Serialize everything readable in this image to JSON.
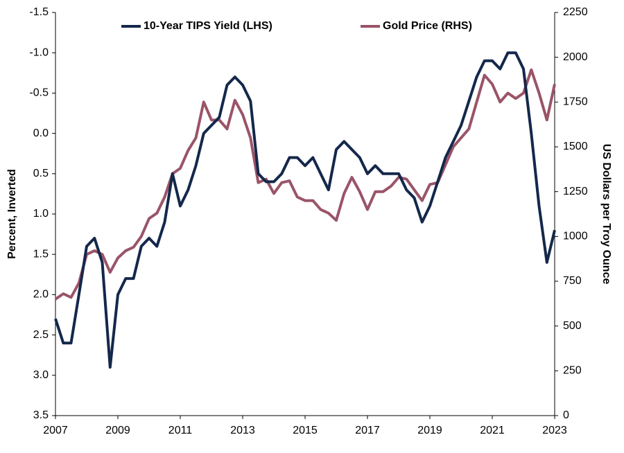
{
  "chart_data": {
    "type": "line",
    "x": [
      2007.0,
      2007.25,
      2007.5,
      2007.75,
      2008.0,
      2008.25,
      2008.5,
      2008.75,
      2009.0,
      2009.25,
      2009.5,
      2009.75,
      2010.0,
      2010.25,
      2010.5,
      2010.75,
      2011.0,
      2011.25,
      2011.5,
      2011.75,
      2012.0,
      2012.25,
      2012.5,
      2012.75,
      2013.0,
      2013.25,
      2013.5,
      2013.75,
      2014.0,
      2014.25,
      2014.5,
      2014.75,
      2015.0,
      2015.25,
      2015.5,
      2015.75,
      2016.0,
      2016.25,
      2016.5,
      2016.75,
      2017.0,
      2017.25,
      2017.5,
      2017.75,
      2018.0,
      2018.25,
      2018.5,
      2018.75,
      2019.0,
      2019.25,
      2019.5,
      2019.75,
      2020.0,
      2020.25,
      2020.5,
      2020.75,
      2021.0,
      2021.25,
      2021.5,
      2021.75,
      2022.0,
      2022.25,
      2022.5,
      2022.75,
      2023.0
    ],
    "series": [
      {
        "name": "10-Year TIPS Yield (LHS)",
        "color": "#14284b",
        "values": [
          2.3,
          2.6,
          2.6,
          2.0,
          1.4,
          1.3,
          1.6,
          2.9,
          2.0,
          1.8,
          1.8,
          1.4,
          1.3,
          1.4,
          1.1,
          0.5,
          0.9,
          0.7,
          0.4,
          0.0,
          -0.1,
          -0.2,
          -0.6,
          -0.7,
          -0.6,
          -0.4,
          0.5,
          0.6,
          0.6,
          0.5,
          0.3,
          0.3,
          0.4,
          0.3,
          0.5,
          0.7,
          0.2,
          0.1,
          0.2,
          0.3,
          0.5,
          0.4,
          0.5,
          0.5,
          0.5,
          0.7,
          0.8,
          1.1,
          0.9,
          0.6,
          0.3,
          0.1,
          -0.1,
          -0.4,
          -0.7,
          -0.9,
          -0.9,
          -0.8,
          -1.0,
          -1.0,
          -0.8,
          0.0,
          0.9,
          1.6,
          1.2
        ]
      },
      {
        "name": "Gold Price (RHS)",
        "color": "#9a5468",
        "axis": "y2",
        "values": [
          650,
          680,
          660,
          740,
          900,
          920,
          900,
          800,
          880,
          920,
          940,
          1000,
          1100,
          1130,
          1220,
          1350,
          1380,
          1480,
          1550,
          1750,
          1650,
          1650,
          1600,
          1760,
          1680,
          1550,
          1300,
          1320,
          1240,
          1300,
          1310,
          1220,
          1200,
          1200,
          1150,
          1130,
          1090,
          1240,
          1330,
          1250,
          1150,
          1250,
          1250,
          1280,
          1330,
          1320,
          1260,
          1200,
          1290,
          1300,
          1400,
          1500,
          1550,
          1600,
          1750,
          1900,
          1850,
          1750,
          1800,
          1770,
          1800,
          1930,
          1800,
          1650,
          1850
        ]
      }
    ],
    "y_label": "Percent, Inverted",
    "y2_label": "US Dollars per Troy Ounce",
    "xlim": [
      2007,
      2023
    ],
    "xticks": [
      2007,
      2009,
      2011,
      2013,
      2015,
      2017,
      2019,
      2021,
      2023
    ],
    "ylim": [
      -1.5,
      3.5
    ],
    "y_inverted": true,
    "yticks": [
      -1.5,
      {
        "value": -1,
        "label": "-1.0"
      },
      -0.5,
      {
        "value": 0,
        "label": "0.0"
      },
      0.5,
      {
        "value": 1,
        "label": "1.0"
      },
      1.5,
      {
        "value": 2,
        "label": "2.0"
      },
      2.5,
      {
        "value": 3,
        "label": "3.0"
      },
      3.5
    ],
    "y2lim": [
      0,
      2250
    ],
    "y2ticks": [
      0,
      250,
      500,
      750,
      1000,
      1250,
      1500,
      1750,
      2000,
      2250
    ],
    "legend": "top"
  }
}
